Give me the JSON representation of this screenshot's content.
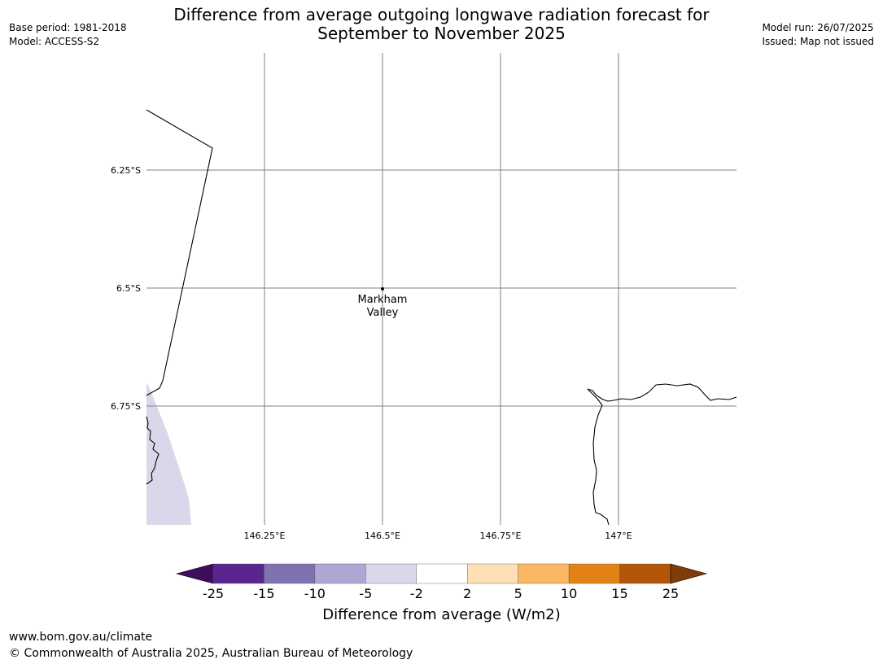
{
  "header": {
    "base_period": "Base period: 1981-2018",
    "model": "Model: ACCESS-S2",
    "model_run": "Model run: 26/07/2025",
    "issued": "Issued: Map not issued",
    "title_line1": "Difference from average outgoing longwave radiation forecast for",
    "title_line2": "September to November 2025"
  },
  "map": {
    "lat_labels": [
      "6.25°S",
      "6.5°S",
      "6.75°S"
    ],
    "lon_labels": [
      "146.25°E",
      "146.5°E",
      "146.75°E",
      "147°E"
    ],
    "place_name_line1": "Markham",
    "place_name_line2": "Valley"
  },
  "colorbar": {
    "label": "Difference from average (W/m2)",
    "ticks": [
      "-25",
      "-15",
      "-10",
      "-5",
      "-2",
      "2",
      "5",
      "10",
      "15",
      "25"
    ],
    "colors": [
      "#3f0d5e",
      "#5a2590",
      "#8071b0",
      "#aea6d3",
      "#d9d8ea",
      "#ffffff",
      "#fde0b5",
      "#fbb763",
      "#e28215",
      "#b3560a",
      "#7f3b08"
    ]
  },
  "footer": {
    "url": "www.bom.gov.au/climate",
    "copyright": "© Commonwealth of Australia 2025, Australian Bureau of Meteorology"
  }
}
